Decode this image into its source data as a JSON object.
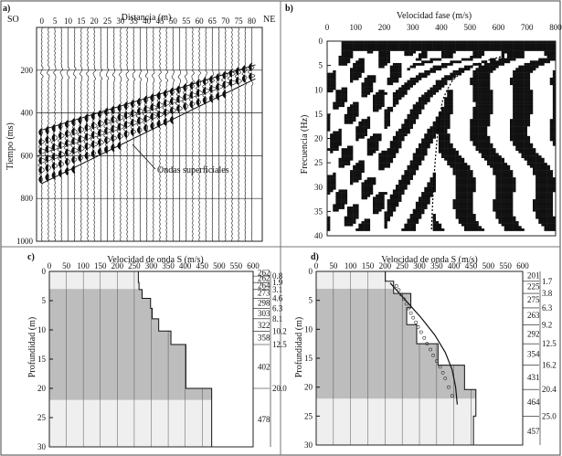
{
  "chart_data": [
    {
      "panel": "a)",
      "type": "seismogram",
      "xlabel": "Distancia (m)",
      "ylabel": "Tiempo (ms)",
      "x_left_label": "SO",
      "x_right_label": "NE",
      "xticks": [
        0,
        5,
        10,
        15,
        20,
        25,
        30,
        35,
        40,
        45,
        50,
        55,
        60,
        65,
        70,
        75,
        80
      ],
      "yticks": [
        200,
        400,
        600,
        800,
        1000
      ],
      "ylim": [
        0,
        1000
      ],
      "xlim": [
        -2,
        84
      ],
      "traces_x": [
        0,
        2.5,
        5,
        7.5,
        10,
        12.5,
        15,
        17.5,
        20,
        22.5,
        25,
        27.5,
        30,
        32.5,
        35,
        37.5,
        40,
        42.5,
        45,
        47.5,
        50,
        52.5,
        55,
        57.5,
        60,
        62.5,
        65,
        67.5,
        70,
        72.5,
        75,
        77.5,
        80
      ],
      "annotation": "Ondas superficiales",
      "guide_lines": [
        {
          "x": [
            0,
            80
          ],
          "y": [
            480,
            175
          ]
        },
        {
          "x": [
            0,
            80
          ],
          "y": [
            730,
            240
          ]
        }
      ]
    },
    {
      "panel": "b)",
      "type": "heatmap",
      "xlabel": "Velocidad fase (m/s)",
      "ylabel": "Frecuencia (Hz)",
      "xticks": [
        0,
        100,
        200,
        300,
        400,
        500,
        600,
        700,
        800
      ],
      "yticks": [
        0,
        5,
        10,
        15,
        20,
        25,
        30,
        35,
        40
      ],
      "xlim": [
        0,
        800
      ],
      "ylim": [
        0,
        40
      ],
      "data_extent_hz": 39,
      "dispersion_curve": {
        "freq": [
          3,
          4,
          5,
          6,
          7,
          8,
          10,
          12,
          15,
          20,
          25,
          30,
          35,
          39
        ],
        "vel": [
          620,
          560,
          510,
          480,
          460,
          440,
          420,
          405,
          395,
          385,
          378,
          372,
          368,
          365
        ]
      }
    },
    {
      "panel": "c)",
      "type": "step",
      "xlabel": "Velocidad de onda S (m/s)",
      "ylabel": "Profundidad (m)",
      "xticks": [
        0,
        50,
        100,
        150,
        200,
        250,
        300,
        350,
        400,
        450,
        500,
        550,
        600
      ],
      "yticks": [
        0,
        5,
        10,
        15,
        20,
        25,
        30
      ],
      "xlim": [
        0,
        600
      ],
      "ylim": [
        0,
        30
      ],
      "layers": [
        {
          "top": 0,
          "bottom": 0.8,
          "vs": 262
        },
        {
          "top": 0.8,
          "bottom": 1.9,
          "vs": 262
        },
        {
          "top": 1.9,
          "bottom": 3.1,
          "vs": 264
        },
        {
          "top": 3.1,
          "bottom": 4.6,
          "vs": 273
        },
        {
          "top": 4.6,
          "bottom": 6.3,
          "vs": 298
        },
        {
          "top": 6.3,
          "bottom": 8.1,
          "vs": 303
        },
        {
          "top": 8.1,
          "bottom": 10.2,
          "vs": 322
        },
        {
          "top": 10.2,
          "bottom": 12.5,
          "vs": 358
        },
        {
          "top": 12.5,
          "bottom": 20.0,
          "vs": 402
        },
        {
          "top": 20.0,
          "bottom": 30,
          "vs": 478
        }
      ],
      "right_vs_labels": [
        {
          "text": "262",
          "depth": 0.2
        },
        {
          "text": "262",
          "depth": 1.2
        },
        {
          "text": "264",
          "depth": 2.4
        },
        {
          "text": "273",
          "depth": 3.7
        },
        {
          "text": "298",
          "depth": 5.4
        },
        {
          "text": "303",
          "depth": 7.2
        },
        {
          "text": "322",
          "depth": 9.2
        },
        {
          "text": "358",
          "depth": 11.3
        },
        {
          "text": "402",
          "depth": 16.3
        },
        {
          "text": "478",
          "depth": 25.3
        }
      ],
      "right_depth_labels": [
        {
          "text": "0.8",
          "depth": 0.8
        },
        {
          "text": "1.9",
          "depth": 1.9
        },
        {
          "text": "3.1",
          "depth": 3.1
        },
        {
          "text": "4.6",
          "depth": 4.6
        },
        {
          "text": "6.3",
          "depth": 6.3
        },
        {
          "text": "8.1",
          "depth": 8.1
        },
        {
          "text": "10.2",
          "depth": 10.2
        },
        {
          "text": "12.5",
          "depth": 12.5
        },
        {
          "text": "20.0",
          "depth": 20.0
        }
      ],
      "shade_bands": [
        {
          "top": 0,
          "bottom": 3,
          "shade": "light"
        },
        {
          "top": 3,
          "bottom": 22,
          "shade": "dark"
        },
        {
          "top": 22,
          "bottom": 30,
          "shade": "light"
        }
      ]
    },
    {
      "panel": "d)",
      "type": "step",
      "xlabel": "Velocidad de onda S (m/s)",
      "ylabel": "Profundidad (m)",
      "xticks": [
        0,
        50,
        100,
        150,
        200,
        250,
        300,
        350,
        400,
        450,
        500,
        550,
        600
      ],
      "yticks": [
        0,
        5,
        10,
        15,
        20,
        25,
        30
      ],
      "xlim": [
        0,
        600
      ],
      "ylim": [
        0,
        30
      ],
      "layers": [
        {
          "top": 0,
          "bottom": 1.7,
          "vs": 201
        },
        {
          "top": 1.7,
          "bottom": 3.8,
          "vs": 225
        },
        {
          "top": 3.8,
          "bottom": 6.3,
          "vs": 275
        },
        {
          "top": 6.3,
          "bottom": 9.2,
          "vs": 263
        },
        {
          "top": 9.2,
          "bottom": 12.5,
          "vs": 292
        },
        {
          "top": 12.5,
          "bottom": 16.2,
          "vs": 354
        },
        {
          "top": 16.2,
          "bottom": 20.4,
          "vs": 431
        },
        {
          "top": 20.4,
          "bottom": 25.0,
          "vs": 464
        },
        {
          "top": 25.0,
          "bottom": 30,
          "vs": 457
        }
      ],
      "right_vs_labels": [
        {
          "text": "201",
          "depth": 0.7
        },
        {
          "text": "225",
          "depth": 2.6
        },
        {
          "text": "275",
          "depth": 4.9
        },
        {
          "text": "263",
          "depth": 7.6
        },
        {
          "text": "292",
          "depth": 10.8
        },
        {
          "text": "354",
          "depth": 14.3
        },
        {
          "text": "431",
          "depth": 18.3
        },
        {
          "text": "464",
          "depth": 22.6
        },
        {
          "text": "457",
          "depth": 27.6
        }
      ],
      "right_depth_labels": [
        {
          "text": "1.7",
          "depth": 1.7
        },
        {
          "text": "3.8",
          "depth": 3.8
        },
        {
          "text": "6.3",
          "depth": 6.3
        },
        {
          "text": "9.2",
          "depth": 9.2
        },
        {
          "text": "12.5",
          "depth": 12.5
        },
        {
          "text": "16.2",
          "depth": 16.2
        },
        {
          "text": "20.4",
          "depth": 20.4
        },
        {
          "text": "25.0",
          "depth": 25.0
        }
      ],
      "shade_bands": [
        {
          "top": 0,
          "bottom": 3,
          "shade": "light"
        },
        {
          "top": 3,
          "bottom": 22,
          "shade": "dark"
        },
        {
          "top": 22,
          "bottom": 30,
          "shade": "light"
        }
      ],
      "trend_curve": {
        "depth": [
          2,
          5,
          8,
          11,
          14,
          17,
          20,
          23
        ],
        "vs": [
          215,
          260,
          305,
          345,
          375,
          395,
          405,
          410
        ]
      },
      "scatter_points": {
        "depth": [
          2.5,
          3.2,
          4,
          4.8,
          5.6,
          6.4,
          7.2,
          8,
          8.8,
          9.6,
          10.5,
          11.5,
          12.5,
          13.5,
          14.5,
          15.5,
          16.5,
          17.5,
          18.5,
          20,
          21.5
        ],
        "vs": [
          233,
          240,
          247,
          255,
          262,
          268,
          275,
          282,
          290,
          296,
          305,
          314,
          322,
          332,
          340,
          350,
          360,
          368,
          375,
          385,
          395
        ]
      }
    }
  ],
  "colors": {
    "dark_band": "#bdbdbd",
    "light_band": "#efefef",
    "ink": "#111111",
    "heat_dark": "#101010",
    "heat_light": "#f2f2f2"
  }
}
